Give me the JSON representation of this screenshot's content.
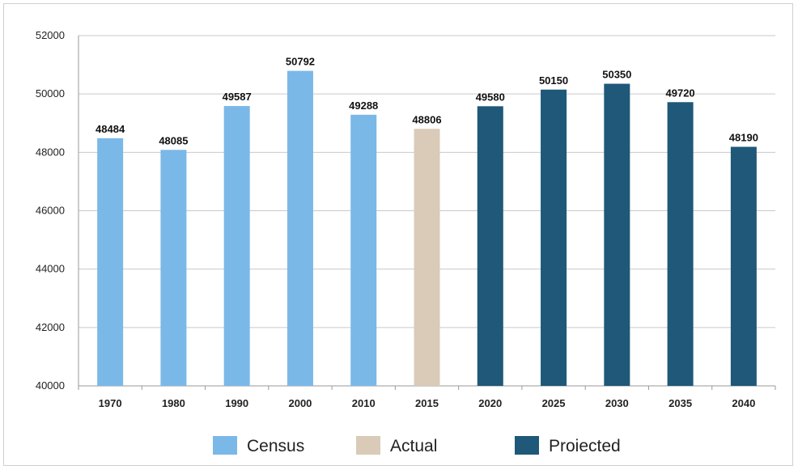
{
  "chart_data": {
    "type": "bar",
    "categories": [
      "1970",
      "1980",
      "1990",
      "2000",
      "2010",
      "2015",
      "2020",
      "2025",
      "2030",
      "2035",
      "2040"
    ],
    "values": [
      48484,
      48085,
      49587,
      50792,
      49288,
      48806,
      49580,
      50150,
      50350,
      49720,
      48190
    ],
    "groups": [
      "Census",
      "Census",
      "Census",
      "Census",
      "Census",
      "Actual",
      "Proiected",
      "Proiected",
      "Proiected",
      "Proiected",
      "Proiected"
    ],
    "data_labels": [
      "48484",
      "48085",
      "49587",
      "50792",
      "49288",
      "48806",
      "49580",
      "50150",
      "50350",
      "49720",
      "48190"
    ],
    "yticks": [
      "40000",
      "42000",
      "44000",
      "46000",
      "48000",
      "50000",
      "52000"
    ],
    "ylim": [
      40000,
      52000
    ],
    "grid": true,
    "legend": {
      "placement": "bottom",
      "items": [
        {
          "name": "Census",
          "color": "#7ab8e8"
        },
        {
          "name": "Actual",
          "color": "#d9cbb8"
        },
        {
          "name": "Proiected",
          "color": "#1f5878"
        }
      ]
    },
    "title": "",
    "xlabel": "",
    "ylabel": ""
  }
}
